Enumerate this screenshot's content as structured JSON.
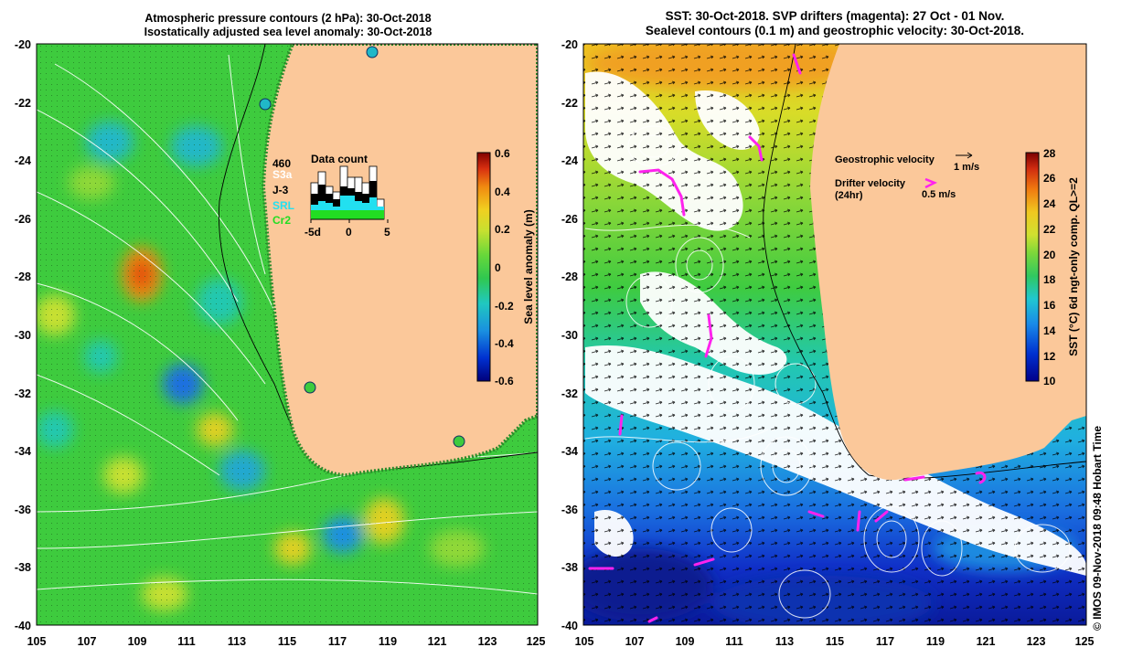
{
  "left_panel": {
    "title_line1": "Atmospheric pressure contours (2 hPa): 30-Oct-2018",
    "title_line2": "Isostatically adjusted sea level anomaly: 30-Oct-2018",
    "lat_ticks": [
      "-20",
      "-22",
      "-24",
      "-26",
      "-28",
      "-30",
      "-32",
      "-34",
      "-36",
      "-38",
      "-40"
    ],
    "lon_ticks": [
      "105",
      "107",
      "109",
      "111",
      "113",
      "115",
      "117",
      "119",
      "121",
      "123",
      "125"
    ],
    "colorbar": {
      "label": "Sea level anomaly (m)",
      "ticks": [
        "0.6",
        "0.4",
        "0.2",
        "0",
        "-0.2",
        "-0.4",
        "-0.6"
      ],
      "range": [
        -0.6,
        0.6
      ]
    },
    "data_count": {
      "title": "Data count",
      "total": "460",
      "legend": [
        {
          "name": "S3a",
          "color": "#ffffff"
        },
        {
          "name": "J-3",
          "color": "#000000"
        },
        {
          "name": "SRL",
          "color": "#22e0f0"
        },
        {
          "name": "Cr2",
          "color": "#22dd22"
        }
      ],
      "x_ticks": [
        "-5d",
        "0",
        "5"
      ]
    }
  },
  "right_panel": {
    "title_line1": "SST: 30-Oct-2018. SVP drifters (magenta): 27 Oct - 01 Nov.",
    "title_line2": "Sealevel contours (0.1 m) and geostrophic velocity: 30-Oct-2018.",
    "lat_ticks": [
      "-20",
      "-22",
      "-24",
      "-26",
      "-28",
      "-30",
      "-32",
      "-34",
      "-36",
      "-38",
      "-40"
    ],
    "lon_ticks": [
      "105",
      "107",
      "109",
      "111",
      "113",
      "115",
      "117",
      "119",
      "121",
      "123",
      "125"
    ],
    "colorbar": {
      "label": "SST (°C) 6d ngt-only comp. QL>=2",
      "ticks": [
        "28",
        "26",
        "24",
        "22",
        "20",
        "18",
        "16",
        "14",
        "12",
        "10"
      ],
      "range": [
        10,
        28
      ]
    },
    "legend": {
      "geo_label": "Geostrophic velocity",
      "geo_scale": "1 m/s",
      "drifter_label_line1": "Drifter velocity",
      "drifter_label_line2": "(24hr)",
      "drifter_scale": "0.5 m/s"
    }
  },
  "credit": "© IMOS 09-Nov-2018 09:48 Hobart Time",
  "colors": {
    "land": "#fbc89a",
    "drifter": "#ff22ee",
    "sla_background": "#3ecb3e"
  }
}
